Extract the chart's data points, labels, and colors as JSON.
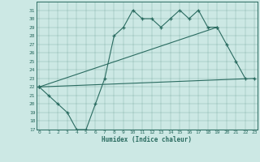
{
  "xlabel": "Humidex (Indice chaleur)",
  "bg_color": "#cce8e4",
  "line_color": "#2a6b60",
  "line1": {
    "x": [
      0,
      1,
      2,
      3,
      4,
      5,
      6,
      7,
      8,
      9,
      10,
      11,
      12,
      13,
      14,
      15,
      16,
      17,
      18,
      19
    ],
    "y": [
      22,
      21,
      20,
      19,
      17,
      17,
      20,
      23,
      28,
      29,
      31,
      30,
      30,
      29,
      30,
      31,
      30,
      31,
      29,
      29
    ]
  },
  "line2": {
    "x": [
      0,
      19,
      20,
      21,
      22
    ],
    "y": [
      22,
      29,
      27,
      25,
      23
    ]
  },
  "line3": {
    "x": [
      0,
      23
    ],
    "y": [
      22,
      23
    ]
  },
  "ylim": [
    17,
    32
  ],
  "xlim": [
    -0.3,
    23.3
  ],
  "yticks": [
    17,
    18,
    19,
    20,
    21,
    22,
    23,
    24,
    25,
    26,
    27,
    28,
    29,
    30,
    31
  ],
  "xticks": [
    0,
    1,
    2,
    3,
    4,
    5,
    6,
    7,
    8,
    9,
    10,
    11,
    12,
    13,
    14,
    15,
    16,
    17,
    18,
    19,
    20,
    21,
    22,
    23
  ]
}
